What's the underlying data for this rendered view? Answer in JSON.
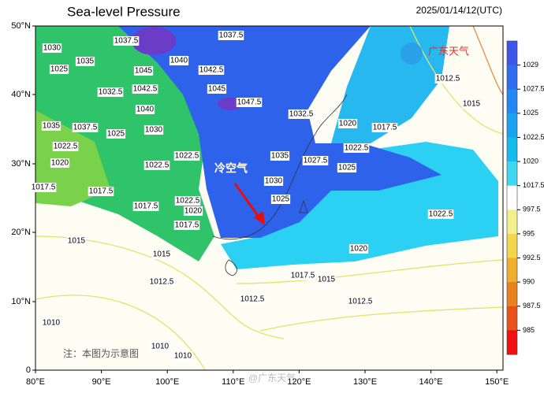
{
  "header": {
    "title": "Sea-level Pressure",
    "timestamp": "2025/01/14/12(UTC)",
    "logo": "广东天气"
  },
  "axes": {
    "lat_labels": [
      "50°N",
      "40°N",
      "30°N",
      "20°N",
      "10°N",
      "0"
    ],
    "lon_labels": [
      "80°E",
      "90°E",
      "100°E",
      "110°E",
      "120°E",
      "130°E",
      "140°E",
      "150°E"
    ]
  },
  "contour_labels": [
    "1030",
    "1037.5",
    "1037.5",
    "1025",
    "1035",
    "1040",
    "1045",
    "1042.5",
    "1032.5",
    "1042.5",
    "1045",
    "1047.5",
    "1040",
    "1035",
    "1037.5",
    "1030",
    "1025",
    "1032.5",
    "1020",
    "1017.5",
    "1022.5",
    "1022.5",
    "1022.5",
    "1035",
    "1027.5",
    "1025",
    "1020",
    "1022.5",
    "1030",
    "1017.5",
    "1017.5",
    "1022.5",
    "1017.5",
    "1025",
    "1020",
    "1017.5",
    "1022.5",
    "1015",
    "1015",
    "1020",
    "1017.5",
    "1012.5",
    "1015",
    "1012.5",
    "1012.5",
    "1010",
    "1010",
    "1010",
    "1012.5",
    "1015"
  ],
  "colorbar": {
    "labels": [
      "1029",
      "1027.5",
      "1025",
      "1022.5",
      "1020",
      "1017.5",
      "997.5",
      "995",
      "992.5",
      "990",
      "987.5",
      "985"
    ],
    "colors": [
      "#3d55e8",
      "#2f6cf0",
      "#1f88f2",
      "#18a2f0",
      "#14bcee",
      "#3fd6f2",
      "#ffffff",
      "#f3ef8c",
      "#f3d64a",
      "#efae2c",
      "#e8821f",
      "#e8521a",
      "#f01010"
    ]
  },
  "annotations": {
    "cold_air": "冷空气",
    "note": "注：本图为示意图",
    "watermark": "@广东天气"
  }
}
